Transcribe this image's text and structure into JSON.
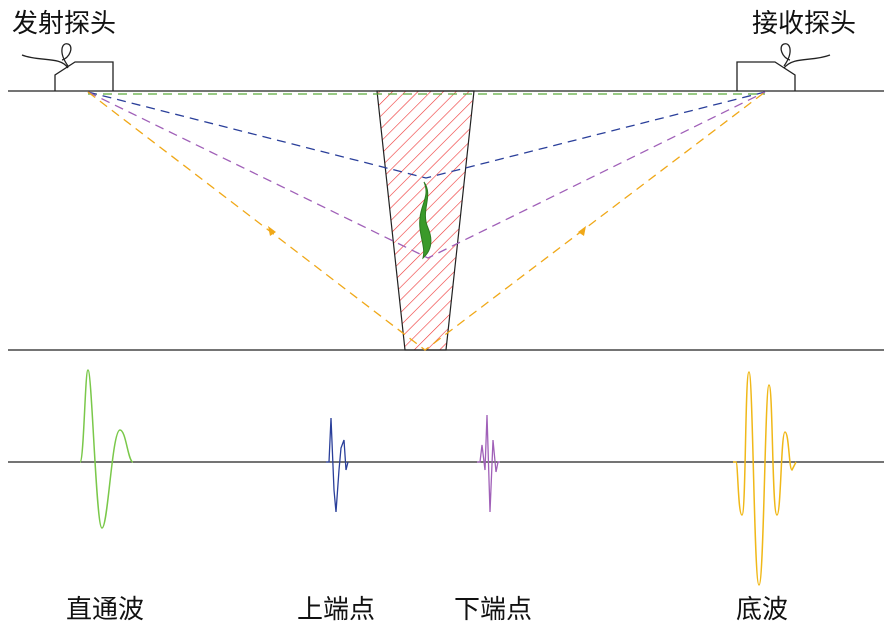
{
  "probes": {
    "transmitter": "发射探头",
    "receiver": "接收探头"
  },
  "waves": [
    {
      "label": "直通波"
    },
    {
      "label": "上端点"
    },
    {
      "label": "下端点"
    },
    {
      "label": "底波"
    }
  ]
}
